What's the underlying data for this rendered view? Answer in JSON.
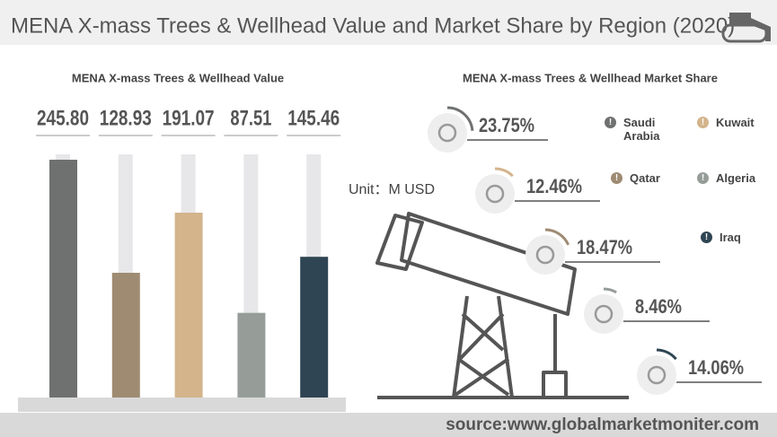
{
  "title": "MENA X-mass Trees & Wellhead Value and Market Share by Region (2020)",
  "annotation": "Unit：M USD",
  "source": "source:www.globalmarketmoniter.com",
  "chart_data": [
    {
      "type": "bar",
      "title": "MENA X-mass Trees & Wellhead Value",
      "categories": [
        null,
        null,
        null,
        null,
        null
      ],
      "values": [
        245.8,
        128.93,
        191.07,
        87.51,
        145.46
      ],
      "value_labels": [
        "245.80",
        "128.93",
        "191.07",
        "87.51",
        "145.46"
      ],
      "colors": [
        "#6f7170",
        "#9e8b72",
        "#d3b48b",
        "#969d99",
        "#2f4553"
      ]
    },
    {
      "type": "radial",
      "title": "MENA X-mass Trees & Wellhead Market Share",
      "categories": [
        "Saudi Arabia",
        "Kuwait",
        "Qatar",
        "Algeria",
        "Iraq"
      ],
      "values": [
        23.75,
        12.46,
        18.47,
        8.46,
        14.06
      ],
      "value_labels": [
        "23.75%",
        "12.46%",
        "18.47%",
        "8.46%",
        "14.06%"
      ],
      "colors": [
        "#6f7170",
        "#d3b48b",
        "#9e8b72",
        "#969d99",
        "#2f4553"
      ],
      "legend": "right"
    }
  ]
}
